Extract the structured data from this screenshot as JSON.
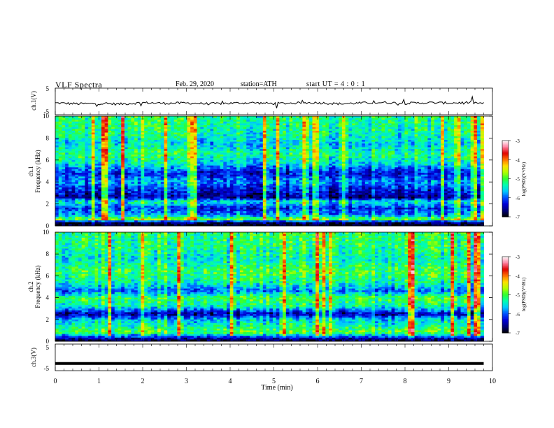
{
  "header": {
    "title": "VLF  Spectra",
    "date": "Feb. 29, 2020",
    "station": "station=ATH",
    "start": "start  UT  =   4  : 0   : 1"
  },
  "colors": {
    "colormap": [
      "#000000",
      "#00007a",
      "#0000d8",
      "#0050ff",
      "#00c8ff",
      "#00ffb0",
      "#30ff30",
      "#b0ff00",
      "#ffe000",
      "#ff7000",
      "#e00000",
      "#ff80a0",
      "#ffffff"
    ],
    "trace": "#000000"
  },
  "chart_data": [
    {
      "type": "line",
      "name_panel": "ch1-waveform",
      "ylabel": "ch.1(V)",
      "ylim": [
        -5,
        5
      ],
      "yticks": [
        "5",
        "-5"
      ],
      "x": [
        0,
        0.5,
        1,
        1.5,
        2,
        2.5,
        3,
        3.5,
        4,
        4.5,
        5,
        5.5,
        6,
        6.5,
        7,
        7.5,
        8,
        8.5,
        9,
        9.5,
        9.8
      ],
      "values": [
        -0.6,
        -0.9,
        -0.8,
        -1.0,
        -0.5,
        -0.7,
        -0.6,
        -0.9,
        -0.7,
        -0.5,
        -0.8,
        -0.6,
        -0.5,
        -0.9,
        -0.6,
        -0.4,
        -0.7,
        -0.5,
        -0.6,
        -0.4,
        -0.8
      ],
      "xlim": [
        0,
        10
      ]
    },
    {
      "type": "heatmap",
      "name_panel": "ch1-spectrogram",
      "ylabel": "Frequency (kHz)",
      "channel_label": "ch.1",
      "ylim": [
        0,
        10
      ],
      "yticks": [
        "0",
        "2",
        "4",
        "6",
        "8",
        "10"
      ],
      "xlim": [
        0,
        9.8
      ],
      "colorbar": {
        "label": "log(PSD)(V²/Hz)",
        "ticks": [
          "-3",
          "-4",
          "-5",
          "-6",
          "-7"
        ],
        "range": [
          -7,
          -3
        ]
      },
      "band_profile_khz": [
        {
          "f": 0.0,
          "v": -7.0
        },
        {
          "f": 0.3,
          "v": -6.8
        },
        {
          "f": 0.6,
          "v": -4.8
        },
        {
          "f": 1.0,
          "v": -5.8
        },
        {
          "f": 1.6,
          "v": -6.2
        },
        {
          "f": 2.2,
          "v": -5.4
        },
        {
          "f": 2.6,
          "v": -6.6
        },
        {
          "f": 3.4,
          "v": -6.2
        },
        {
          "f": 4.0,
          "v": -5.8
        },
        {
          "f": 4.8,
          "v": -6.3
        },
        {
          "f": 5.6,
          "v": -5.6
        },
        {
          "f": 6.5,
          "v": -5.2
        },
        {
          "f": 7.5,
          "v": -5.6
        },
        {
          "f": 8.5,
          "v": -5.3
        },
        {
          "f": 10.0,
          "v": -5.2
        }
      ]
    },
    {
      "type": "heatmap",
      "name_panel": "ch2-spectrogram",
      "ylabel": "Frequency (kHz)",
      "channel_label": "ch.2",
      "ylim": [
        0,
        10
      ],
      "yticks": [
        "0",
        "2",
        "4",
        "6",
        "8",
        "10"
      ],
      "xlim": [
        0,
        9.8
      ],
      "colorbar": {
        "label": "log(PSD)(V²/Hz)",
        "ticks": [
          "-3",
          "-4",
          "-5",
          "-6",
          "-7"
        ],
        "range": [
          -7,
          -3
        ]
      },
      "band_profile_khz": [
        {
          "f": 0.0,
          "v": -6.9
        },
        {
          "f": 0.3,
          "v": -6.4
        },
        {
          "f": 0.8,
          "v": -4.9
        },
        {
          "f": 1.4,
          "v": -5.3
        },
        {
          "f": 2.0,
          "v": -5.6
        },
        {
          "f": 2.5,
          "v": -6.5
        },
        {
          "f": 3.2,
          "v": -5.3
        },
        {
          "f": 4.0,
          "v": -5.0
        },
        {
          "f": 4.6,
          "v": -5.9
        },
        {
          "f": 5.4,
          "v": -5.3
        },
        {
          "f": 6.4,
          "v": -5.0
        },
        {
          "f": 7.5,
          "v": -5.4
        },
        {
          "f": 8.5,
          "v": -5.2
        },
        {
          "f": 10.0,
          "v": -5.1
        }
      ]
    },
    {
      "type": "line",
      "name_panel": "ch3-waveform",
      "ylabel": "ch.3(V)",
      "ylim": [
        -5,
        5
      ],
      "yticks": [
        "5",
        "-5"
      ],
      "x": [
        0,
        9.8
      ],
      "values": [
        -2.3,
        -2.3
      ],
      "xlim": [
        0,
        10
      ]
    }
  ],
  "xaxis": {
    "label": "Time  (min)",
    "ticks": [
      "0",
      "1",
      "2",
      "3",
      "4",
      "5",
      "6",
      "7",
      "8",
      "9",
      "10"
    ],
    "xlim": [
      0,
      10
    ]
  }
}
